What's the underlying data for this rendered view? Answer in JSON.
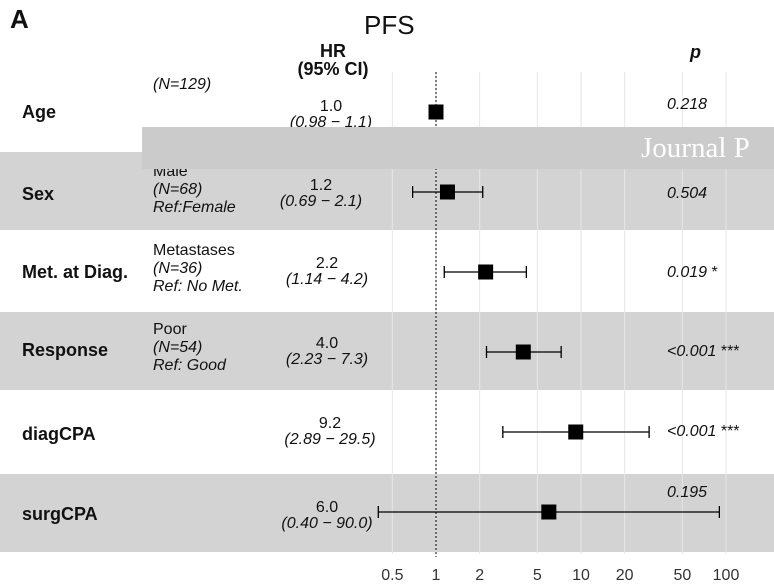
{
  "panel_label": "A",
  "chart_data": {
    "type": "forest",
    "title": "PFS",
    "x_scale": "log",
    "xlim": [
      0.4,
      150
    ],
    "reference_line": 1,
    "grid": true,
    "header": {
      "hr_line1": "HR",
      "hr_line2": "(95% CI)",
      "p": "p"
    },
    "ticks": [
      0.5,
      1,
      2,
      5,
      10,
      20,
      50,
      100
    ],
    "tick_labels": [
      "0.5",
      "1",
      "2",
      "5",
      "10",
      "20",
      "50",
      "100"
    ],
    "rows": [
      {
        "variable": "Age",
        "level": "",
        "n": "(N=129)",
        "ref": "",
        "hr": 1.0,
        "lo": 0.98,
        "hi": 1.1,
        "hr_text": "1.0",
        "ci_text": "(0.98 − 1.1)",
        "p": "0.218",
        "stars": ""
      },
      {
        "variable": "Sex",
        "level": "Male",
        "n": "(N=68)",
        "ref": "Ref:Female",
        "hr": 1.2,
        "lo": 0.69,
        "hi": 2.1,
        "hr_text": "1.2",
        "ci_text": "(0.69 − 2.1)",
        "p": "0.504",
        "stars": ""
      },
      {
        "variable": "Met. at Diag.",
        "level": "Metastases",
        "n": "(N=36)",
        "ref": "Ref: No Met.",
        "hr": 2.2,
        "lo": 1.14,
        "hi": 4.2,
        "hr_text": "2.2",
        "ci_text": "(1.14 − 4.2)",
        "p": "0.019",
        "stars": "*"
      },
      {
        "variable": "Response",
        "level": "Poor",
        "n": "(N=54)",
        "ref": "Ref: Good",
        "hr": 4.0,
        "lo": 2.23,
        "hi": 7.3,
        "hr_text": "4.0",
        "ci_text": "(2.23 − 7.3)",
        "p": "<0.001",
        "stars": "***"
      },
      {
        "variable": "diagCPA",
        "level": "",
        "n": "",
        "ref": "",
        "hr": 9.2,
        "lo": 2.89,
        "hi": 29.5,
        "hr_text": "9.2",
        "ci_text": "(2.89 − 29.5)",
        "p": "<0.001",
        "stars": "***"
      },
      {
        "variable": "surgCPA",
        "level": "",
        "n": "",
        "ref": "",
        "hr": 6.0,
        "lo": 0.4,
        "hi": 90.0,
        "hr_text": "6.0",
        "ci_text": "(0.40 − 90.0)",
        "p": "0.195",
        "stars": ""
      }
    ]
  },
  "overlay": {
    "watermark_text": "Journal P"
  },
  "colors": {
    "shade": "#d3d3d3",
    "banner": "#cbcbcb",
    "grid": "#e6e6e6",
    "marker": "#000000"
  }
}
